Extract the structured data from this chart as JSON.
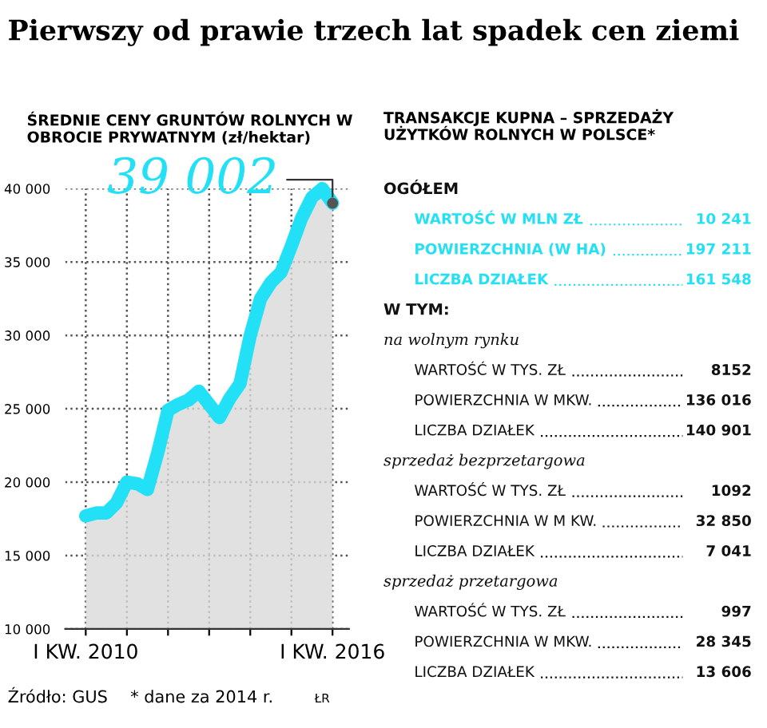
{
  "chart_data": [
    {
      "type": "area",
      "title": "Pierwszy od prawie trzech lat spadek cen ziemi",
      "subtitle": "ŚREDNIE CENY GRUNTÓW ROLNYCH W OBROCIE PRYWATNYM (zł/hektar)",
      "x": [
        2010.0,
        2010.25,
        2010.5,
        2010.75,
        2011.0,
        2011.25,
        2011.5,
        2011.75,
        2012.0,
        2012.25,
        2012.5,
        2012.75,
        2013.0,
        2013.25,
        2013.5,
        2013.75,
        2014.0,
        2014.25,
        2014.5,
        2014.75,
        2015.0,
        2015.25,
        2015.5,
        2015.75,
        2016.0
      ],
      "series": [
        {
          "color": "#22e0f5",
          "values": [
            17700,
            17900,
            17900,
            18600,
            20000,
            19900,
            19500,
            22000,
            24900,
            25300,
            25600,
            26200,
            25300,
            24400,
            25700,
            26700,
            30000,
            32500,
            33600,
            34300,
            36100,
            38000,
            39400,
            40000,
            39002
          ],
          "value_labels": [
            null,
            null,
            null,
            null,
            null,
            null,
            null,
            null,
            null,
            null,
            null,
            null,
            null,
            null,
            null,
            null,
            null,
            null,
            null,
            null,
            null,
            null,
            null,
            null,
            "39 002"
          ]
        }
      ],
      "xlim": [
        2009.5,
        2016.4
      ],
      "ylim": [
        10000,
        40000
      ],
      "xticks": [
        {
          "value": 2010,
          "label": "I KW. 2010"
        },
        {
          "value": 2011,
          "label": null
        },
        {
          "value": 2012,
          "label": null
        },
        {
          "value": 2013,
          "label": null
        },
        {
          "value": 2014,
          "label": null
        },
        {
          "value": 2015,
          "label": null
        },
        {
          "value": 2016,
          "label": "I KW. 2016"
        }
      ],
      "yticks": [
        {
          "value": 10000,
          "label": "10 000"
        },
        {
          "value": 15000,
          "label": "15 000"
        },
        {
          "value": 20000,
          "label": "20 000"
        },
        {
          "value": 25000,
          "label": "25 000"
        },
        {
          "value": 30000,
          "label": "30 000"
        },
        {
          "value": 35000,
          "label": "35 000"
        },
        {
          "value": 40000,
          "label": "40 000"
        }
      ],
      "grid": true,
      "line_style": "solid",
      "marker": "none",
      "annotations": [
        "Źródło: GUS",
        "* dane za 2014 r.",
        "ŁR"
      ]
    },
    {
      "type": "other",
      "title": "TRANSAKCJE KUPNA – SPRZEDAŻY UŻYTKÓW ROLNYCH W POLSCE*",
      "categories": [
        "OGÓŁEM",
        "WARTOŚĆ W MLN ZŁ",
        "POWIERZCHNIA (W HA)",
        "LICZBA DZIAŁEK",
        null,
        "na wolnym rynku",
        "WARTOŚĆ W TYS. ZŁ",
        "POWIERZCHNIA W MKW.",
        "LICZBA DZIAŁEK",
        "sprzedaż bezprzetargowa",
        "WARTOŚĆ W TYS. ZŁ",
        "POWIERZCHNIA W M KW.",
        "LICZBA DZIAŁEK",
        "sprzedaż przetargowa",
        "WARTOŚĆ W TYS. ZŁ",
        "POWIERZCHNIA W MKW.",
        "LICZBA DZIAŁEK"
      ],
      "value_labels": [
        null,
        "10 241",
        "197 211",
        "161 548",
        null,
        null,
        "8152",
        "136 016",
        "140 901",
        null,
        "1092",
        "32 850",
        "7 041",
        null,
        "997",
        "28 345",
        "13 606"
      ],
      "annotations": [
        "W TYM:"
      ],
      "colors": [
        "#111111",
        "#22e0f5",
        "#22e0f5",
        "#22e0f5",
        "#111111",
        "#111111",
        "#111111",
        "#111111",
        "#111111",
        "#111111",
        "#111111",
        "#111111",
        "#111111",
        "#111111",
        "#111111",
        "#111111",
        "#111111"
      ]
    }
  ]
}
